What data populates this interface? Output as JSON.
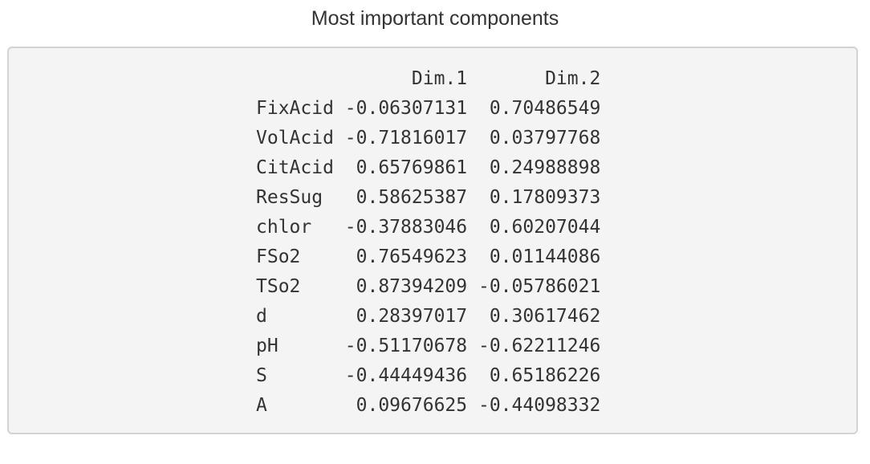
{
  "title": "Most important components",
  "table": {
    "columns": [
      "Dim.1",
      "Dim.2"
    ],
    "rows": [
      {
        "label": "FixAcid",
        "values": [
          "-0.06307131",
          "0.70486549"
        ]
      },
      {
        "label": "VolAcid",
        "values": [
          "-0.71816017",
          "0.03797768"
        ]
      },
      {
        "label": "CitAcid",
        "values": [
          "0.65769861",
          "0.24988898"
        ]
      },
      {
        "label": "ResSug",
        "values": [
          "0.58625387",
          "0.17809373"
        ]
      },
      {
        "label": "chlor",
        "values": [
          "-0.37883046",
          "0.60207044"
        ]
      },
      {
        "label": "FSo2",
        "values": [
          "0.76549623",
          "0.01144086"
        ]
      },
      {
        "label": "TSo2",
        "values": [
          "0.87394209",
          "-0.05786021"
        ]
      },
      {
        "label": "d",
        "values": [
          "0.28397017",
          "0.30617462"
        ]
      },
      {
        "label": "pH",
        "values": [
          "-0.51170678",
          "-0.62211246"
        ]
      },
      {
        "label": "S",
        "values": [
          "-0.44449436",
          "0.65186226"
        ]
      },
      {
        "label": "A",
        "values": [
          "0.09676625",
          "-0.44098332"
        ]
      }
    ]
  }
}
